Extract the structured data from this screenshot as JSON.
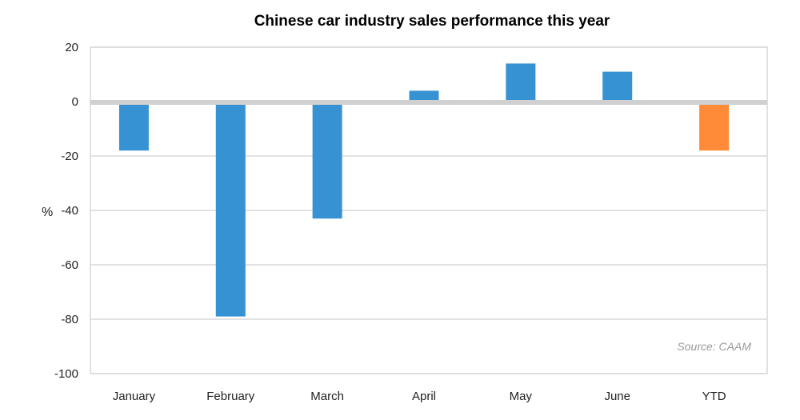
{
  "chart_data": {
    "type": "bar",
    "title": "Chinese car industry sales performance this year",
    "ylabel": "%",
    "xlabel": "",
    "categories": [
      "January",
      "February",
      "March",
      "April",
      "May",
      "June",
      "YTD"
    ],
    "values": [
      -18,
      -79,
      -43,
      4,
      14,
      11,
      -18
    ],
    "bar_colors": [
      "#3792d3",
      "#3792d3",
      "#3792d3",
      "#3792d3",
      "#3792d3",
      "#3792d3",
      "#ff8b38"
    ],
    "ylim": [
      -100,
      20
    ],
    "yticks": [
      20,
      0,
      -20,
      -40,
      -60,
      -80,
      -100
    ],
    "grid": true,
    "annotation": "Source: CAAM"
  }
}
